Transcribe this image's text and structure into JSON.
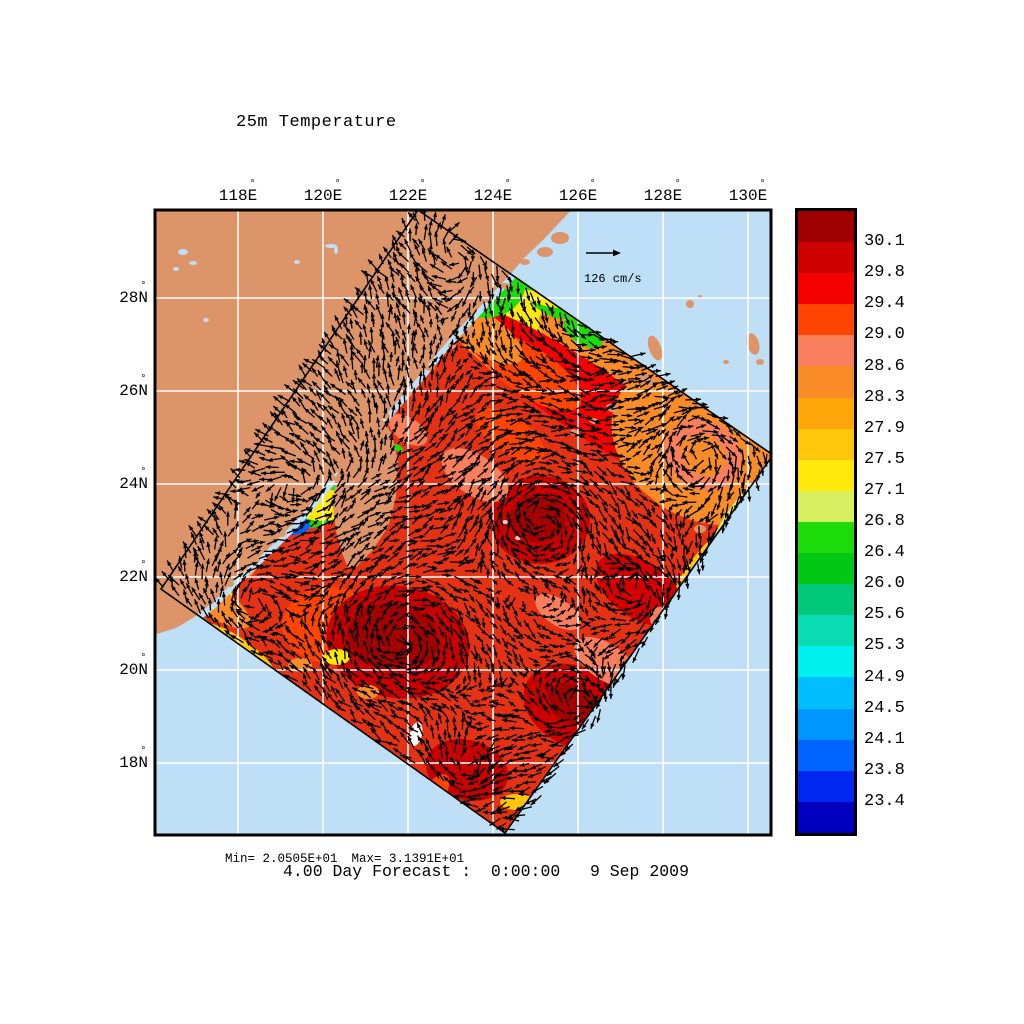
{
  "title": "25m Temperature",
  "map": {
    "lon_tick_labels": [
      "118°E",
      "120°E",
      "122°E",
      "124°E",
      "126°E",
      "128°E",
      "130°E"
    ],
    "lat_tick_labels": [
      "28°N",
      "26°N",
      "24°N",
      "22°N",
      "20°N",
      "18°N"
    ],
    "reference_vector_label": "126 cm/s"
  },
  "colorbar": {
    "tick_labels": [
      "30.1",
      "29.8",
      "29.4",
      "29.0",
      "28.6",
      "28.3",
      "27.9",
      "27.5",
      "27.1",
      "26.8",
      "26.4",
      "26.0",
      "25.6",
      "25.3",
      "24.9",
      "24.5",
      "24.1",
      "23.8",
      "23.4"
    ],
    "segment_colors": [
      "#9E0000",
      "#CE0000",
      "#F40000",
      "#FF4300",
      "#F87E5C",
      "#FA8C28",
      "#FFA60A",
      "#FFC60A",
      "#FFE80A",
      "#D8EF60",
      "#1EDC0A",
      "#00C814",
      "#00C878",
      "#0ADCB4",
      "#00F0F0",
      "#00BEFF",
      "#0096FF",
      "#0064FF",
      "#0028F0",
      "#0000BE"
    ]
  },
  "stats": {
    "min_label": "Min= 2.0505E+01",
    "max_label": "Max= 3.1391E+01"
  },
  "footer": "4.00 Day Forecast :  0:00:00   9 Sep 2009",
  "colors": {
    "ocean": "#BEDFF6",
    "land": "#DC9468",
    "gridline": "#FFFFFF",
    "frame": "#000000",
    "vector": "#000000",
    "field_base": "#E63214"
  },
  "chart_data": {
    "type": "heatmap",
    "title": "25m Temperature",
    "variable": "sea temperature at 25 m depth",
    "x_tick_labels": [
      "118°E",
      "120°E",
      "122°E",
      "124°E",
      "126°E",
      "128°E",
      "130°E"
    ],
    "y_tick_labels": [
      "28°N",
      "26°N",
      "24°N",
      "22°N",
      "20°N",
      "18°N"
    ],
    "color_levels_low_to_high": [
      23.4,
      23.8,
      24.1,
      24.5,
      24.9,
      25.3,
      25.6,
      26.0,
      26.4,
      26.8,
      27.1,
      27.5,
      27.9,
      28.3,
      28.6,
      29.0,
      29.4,
      29.8,
      30.1
    ],
    "palette_top_to_bottom": [
      "#9E0000",
      "#CE0000",
      "#F40000",
      "#FF4300",
      "#F87E5C",
      "#FA8C28",
      "#FFA60A",
      "#FFC60A",
      "#FFE80A",
      "#D8EF60",
      "#1EDC0A",
      "#00C814",
      "#00C878",
      "#0ADCB4",
      "#00F0F0",
      "#00BEFF",
      "#0096FF",
      "#0064FF",
      "#0028F0",
      "#0000BE"
    ],
    "field_min": 20.505,
    "field_max": 31.391,
    "overlay": "current vector field",
    "vector_reference": "126 cm/s",
    "annotation": "4.00 Day Forecast :  0:00:00   9 Sep 2009",
    "legend_position": "right colorbar",
    "grid": true
  }
}
